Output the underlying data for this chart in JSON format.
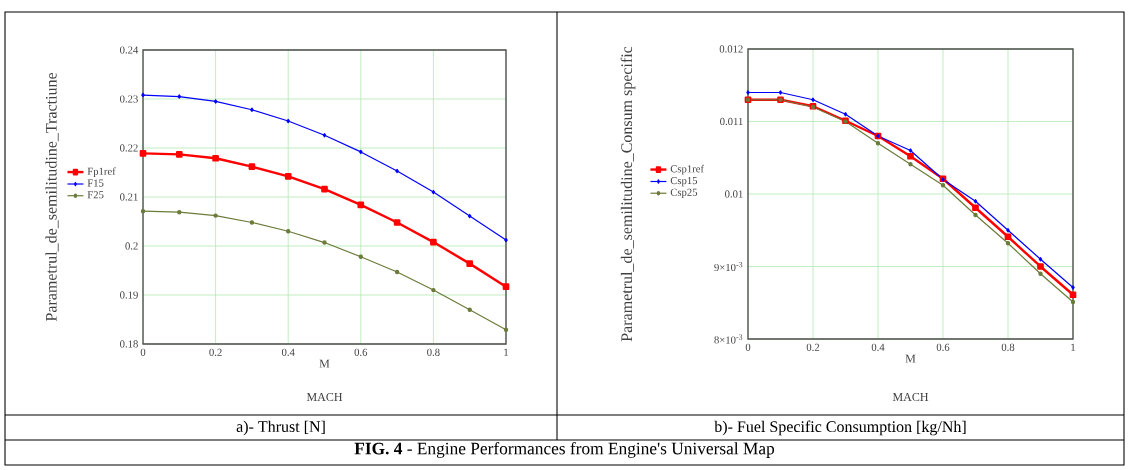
{
  "chart_data": [
    {
      "type": "line",
      "xlabel": "M",
      "ylabel": "Parametrul_de_semilitudine_Tractiune",
      "annotations": [
        "MACH",
        "a)- Thrust [N]"
      ],
      "x": [
        0,
        0.1,
        0.2,
        0.3,
        0.4,
        0.5,
        0.6,
        0.7,
        0.8,
        0.9,
        1
      ],
      "xlim": [
        0,
        1
      ],
      "ylim": [
        0.18,
        0.24
      ],
      "xticks": [
        0,
        0.2,
        0.4,
        0.6,
        0.8,
        1
      ],
      "yticks": [
        0.18,
        0.19,
        0.2,
        0.21,
        0.22,
        0.23,
        0.24
      ],
      "grid": true,
      "legend": "left",
      "line_style": "solid",
      "series": [
        {
          "name": "Fp1ref",
          "color": "#ff0000",
          "marker": "square",
          "values": [
            0.2189,
            0.2187,
            0.2179,
            0.2162,
            0.2142,
            0.2116,
            0.2084,
            0.2048,
            0.2008,
            0.1964,
            0.1917
          ]
        },
        {
          "name": "F15",
          "color": "#0000ff",
          "marker": "diamond",
          "values": [
            0.2308,
            0.2305,
            0.2295,
            0.2278,
            0.2255,
            0.2226,
            0.2192,
            0.2153,
            0.211,
            0.2061,
            0.2012
          ]
        },
        {
          "name": "F25",
          "color": "#6b7b3a",
          "marker": "circle",
          "values": [
            0.2071,
            0.2069,
            0.2062,
            0.2048,
            0.203,
            0.2007,
            0.1978,
            0.1947,
            0.191,
            0.187,
            0.1829
          ]
        }
      ]
    },
    {
      "type": "line",
      "xlabel": "M",
      "ylabel": "Parametrul_de_semilitudine_Consum specific",
      "annotations": [
        "MACH",
        "b)- Fuel Specific Consumption [kg/Nh]",
        "**FIG. 4** - Engine Performances from Engine's Universal Map"
      ],
      "x": [
        0,
        0.1,
        0.2,
        0.3,
        0.4,
        0.5,
        0.6,
        0.7,
        0.8,
        0.9,
        1
      ],
      "xlim": [
        0,
        1
      ],
      "ylim": [
        0.008,
        0.012
      ],
      "xticks": [
        0,
        0.2,
        0.4,
        0.6,
        0.8,
        1
      ],
      "yticks": [
        {
          "value": 0.008,
          "label": "8×10$^{-3}$"
        },
        {
          "value": 0.009,
          "label": "9×10$^{-3}$"
        },
        0.01,
        0.011,
        0.012
      ],
      "grid": true,
      "legend": "left",
      "line_style": "solid",
      "series": [
        {
          "name": "Csp1ref",
          "color": "#ff0000",
          "marker": "square",
          "values": [
            0.0113,
            0.0113,
            0.01121,
            0.01101,
            0.0108,
            0.01052,
            0.01021,
            0.00981,
            0.00941,
            0.009,
            0.00861
          ]
        },
        {
          "name": "Csp15",
          "color": "#0000ff",
          "marker": "diamond",
          "values": [
            0.0114,
            0.0114,
            0.0113,
            0.0111,
            0.0108,
            0.0106,
            0.0102,
            0.0099,
            0.0095,
            0.0091,
            0.00871
          ]
        },
        {
          "name": "Csp25",
          "color": "#6b7b3a",
          "marker": "circle",
          "values": [
            0.0113,
            0.0113,
            0.0112,
            0.011,
            0.0107,
            0.01041,
            0.01012,
            0.00971,
            0.00932,
            0.0089,
            0.00851
          ]
        }
      ]
    }
  ]
}
